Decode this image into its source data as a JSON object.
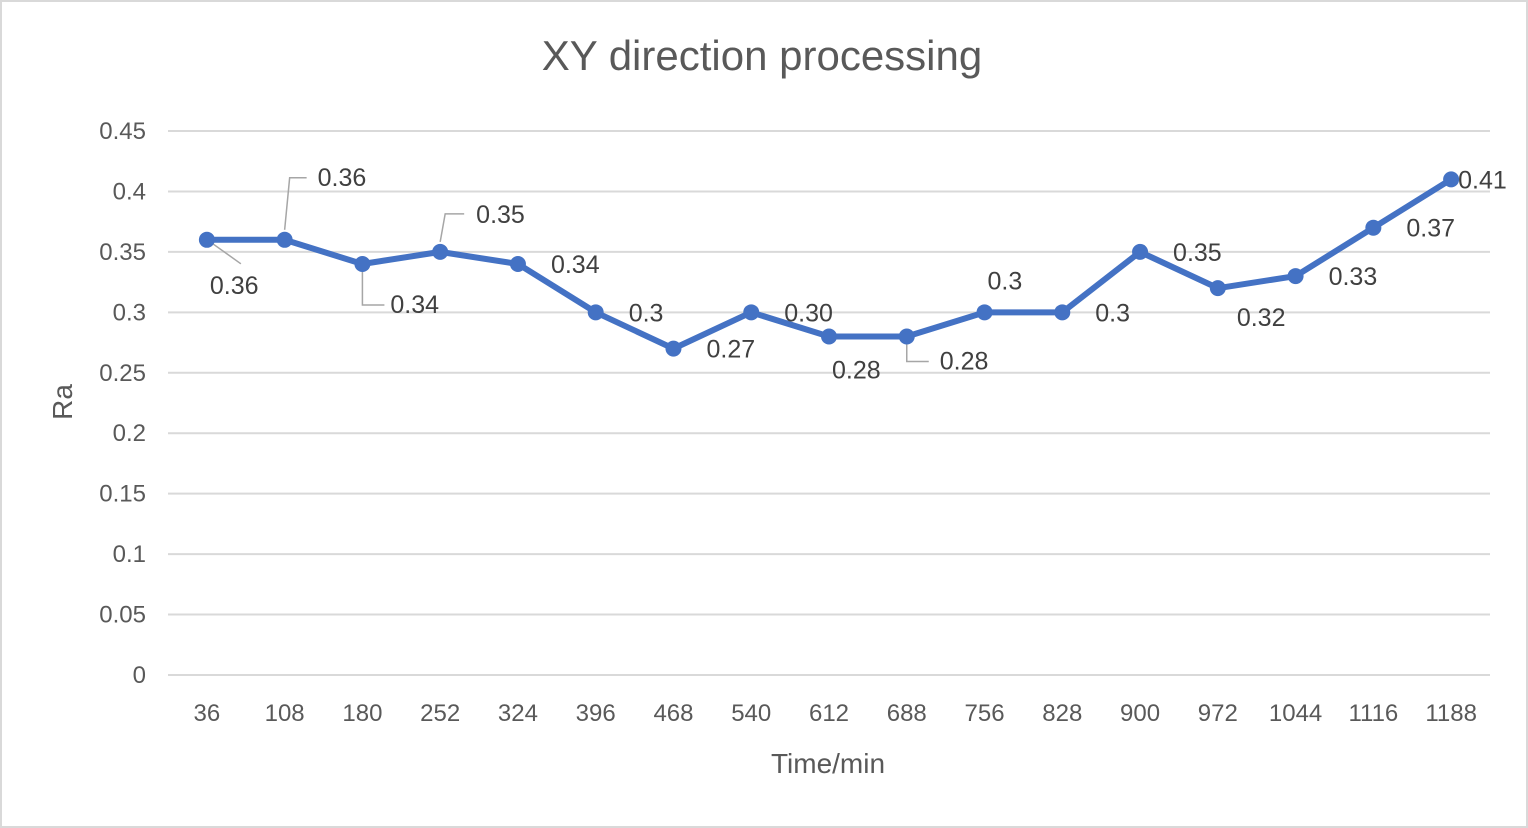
{
  "chart_data": {
    "type": "line",
    "title": "XY direction processing",
    "xlabel": "Time/min",
    "ylabel": "Ra",
    "categories": [
      "36",
      "108",
      "180",
      "252",
      "324",
      "396",
      "468",
      "540",
      "612",
      "688",
      "756",
      "828",
      "900",
      "972",
      "1044",
      "1116",
      "1188"
    ],
    "series": [
      {
        "values": [
          0.36,
          0.36,
          0.34,
          0.35,
          0.34,
          0.3,
          0.27,
          0.3,
          0.28,
          0.28,
          0.3,
          0.3,
          0.35,
          0.32,
          0.33,
          0.37,
          0.41
        ],
        "labels": [
          "0.36",
          "0.36",
          "0.34",
          "0.35",
          "0.34",
          "0.3",
          "0.27",
          "0.30",
          "0.28",
          "0.28",
          "0.3",
          "0.3",
          "0.35",
          "0.32",
          "0.33",
          "0.37",
          "0.41"
        ],
        "color": "#4472c4"
      }
    ],
    "yticks": [
      "0",
      "0.05",
      "0.1",
      "0.15",
      "0.2",
      "0.25",
      "0.3",
      "0.35",
      "0.4",
      "0.45"
    ],
    "ylim": [
      0,
      0.45
    ],
    "grid": true,
    "legend": "none"
  }
}
